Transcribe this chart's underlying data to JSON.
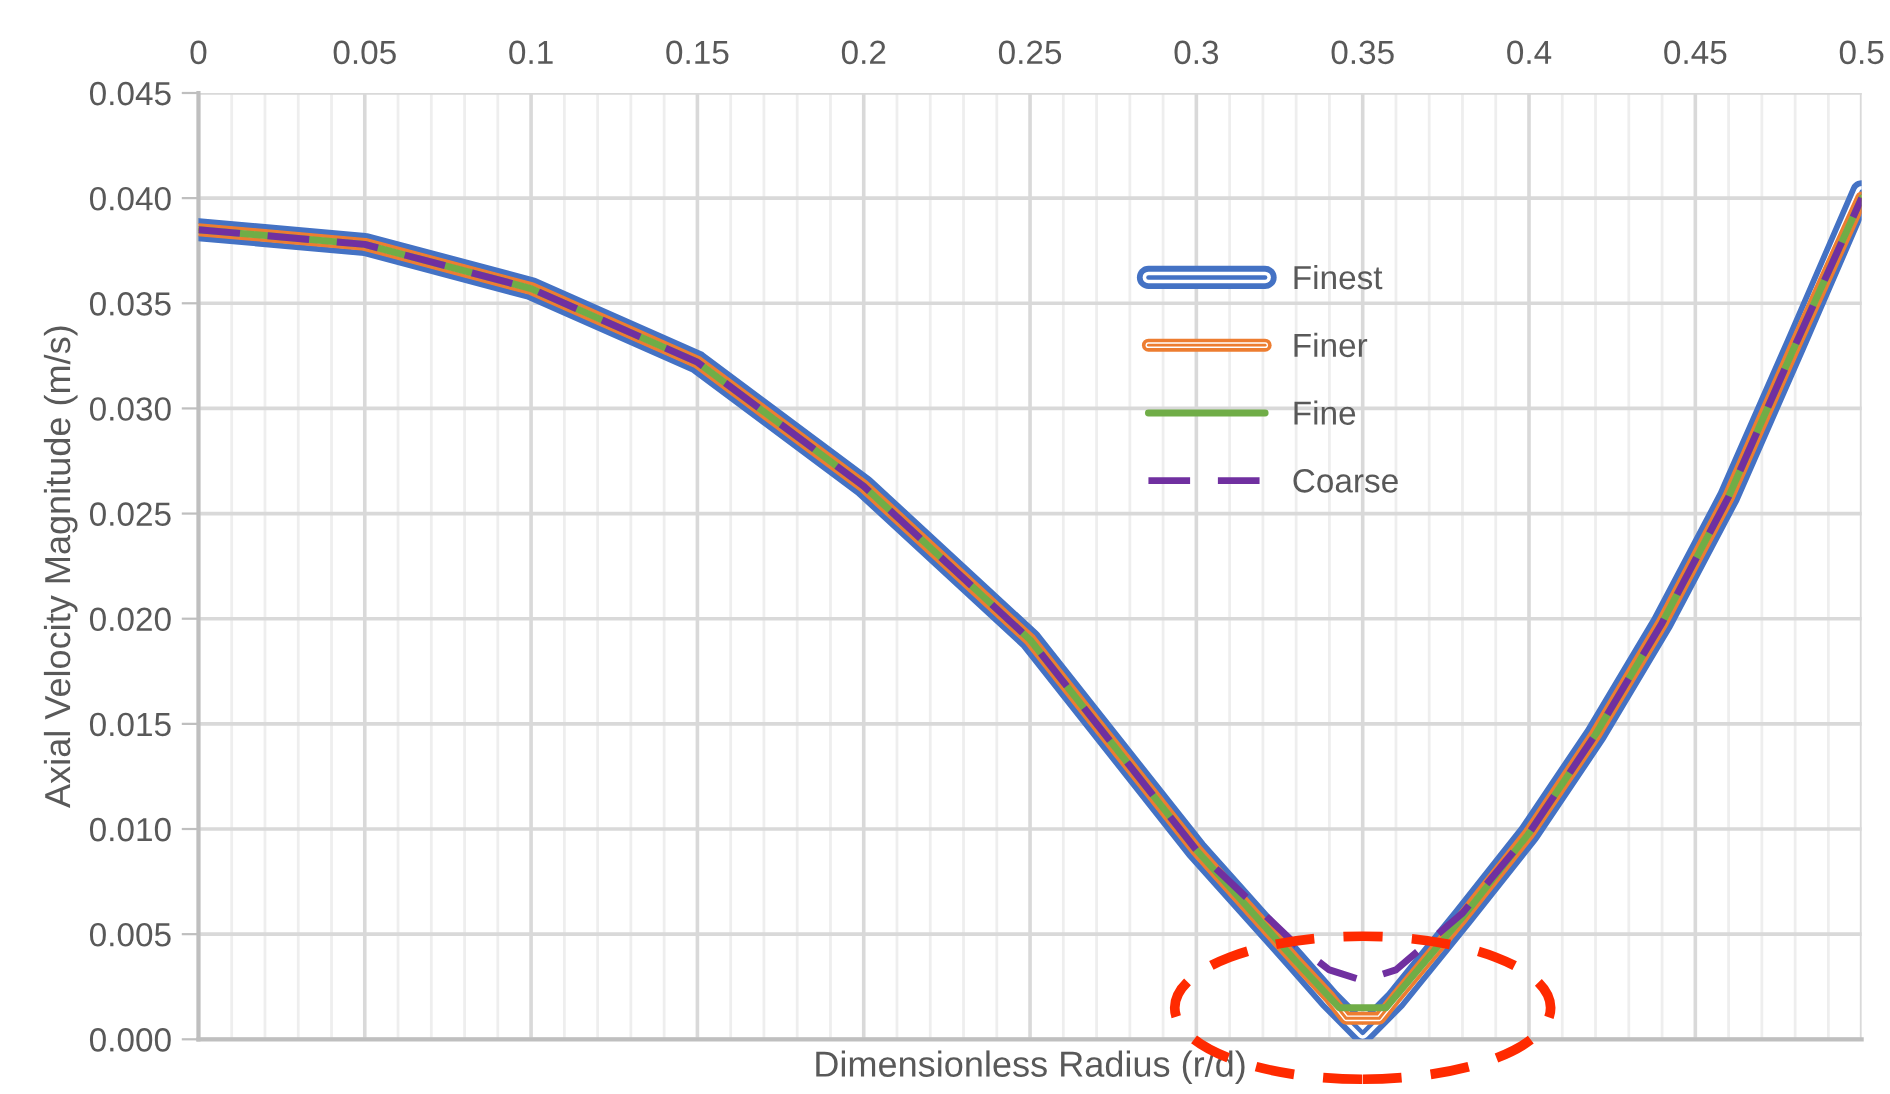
{
  "chart_data": {
    "type": "line",
    "xlabel": "Dimensionless Radius (r/d)",
    "ylabel": "Axial Velocity Magnitude (m/s)",
    "xlim": [
      0,
      0.5
    ],
    "ylim": [
      0,
      0.045
    ],
    "xticks": [
      0,
      {
        "value": 0.01,
        "label": null
      },
      {
        "value": 0.02,
        "label": null
      },
      {
        "value": 0.03,
        "label": null
      },
      {
        "value": 0.04,
        "label": null
      },
      0.05,
      {
        "value": 0.06,
        "label": null
      },
      {
        "value": 0.07,
        "label": null
      },
      {
        "value": 0.08,
        "label": null
      },
      {
        "value": 0.09,
        "label": null
      },
      0.1,
      {
        "value": 0.11,
        "label": null
      },
      {
        "value": 0.12,
        "label": null
      },
      {
        "value": 0.13,
        "label": null
      },
      {
        "value": 0.14,
        "label": null
      },
      0.15,
      {
        "value": 0.16,
        "label": null
      },
      {
        "value": 0.17,
        "label": null
      },
      {
        "value": 0.18,
        "label": null
      },
      {
        "value": 0.19,
        "label": null
      },
      0.2,
      {
        "value": 0.21,
        "label": null
      },
      {
        "value": 0.22,
        "label": null
      },
      {
        "value": 0.23,
        "label": null
      },
      {
        "value": 0.24,
        "label": null
      },
      0.25,
      {
        "value": 0.26,
        "label": null
      },
      {
        "value": 0.27,
        "label": null
      },
      {
        "value": 0.28,
        "label": null
      },
      {
        "value": 0.29,
        "label": null
      },
      0.3,
      {
        "value": 0.31,
        "label": null
      },
      {
        "value": 0.32,
        "label": null
      },
      {
        "value": 0.33,
        "label": null
      },
      {
        "value": 0.34,
        "label": null
      },
      0.35,
      {
        "value": 0.36,
        "label": null
      },
      {
        "value": 0.37,
        "label": null
      },
      {
        "value": 0.38,
        "label": null
      },
      {
        "value": 0.39,
        "label": null
      },
      0.4,
      {
        "value": 0.41,
        "label": null
      },
      {
        "value": 0.42,
        "label": null
      },
      {
        "value": 0.43,
        "label": null
      },
      {
        "value": 0.44,
        "label": null
      },
      0.45,
      {
        "value": 0.46,
        "label": null
      },
      {
        "value": 0.47,
        "label": null
      },
      {
        "value": 0.48,
        "label": null
      },
      {
        "value": 0.49,
        "label": null
      },
      0.5
    ],
    "yticks": [
      {
        "value": 0,
        "label": "0.000"
      },
      {
        "value": 0.005,
        "label": "0.005"
      },
      {
        "value": 0.01,
        "label": "0.010"
      },
      {
        "value": 0.015,
        "label": "0.015"
      },
      {
        "value": 0.02,
        "label": "0.020"
      },
      {
        "value": 0.025,
        "label": "0.025"
      },
      {
        "value": 0.03,
        "label": "0.030"
      },
      {
        "value": 0.035,
        "label": "0.035"
      },
      {
        "value": 0.04,
        "label": "0.040"
      },
      {
        "value": 0.045,
        "label": "0.045"
      }
    ],
    "grid": true,
    "legend": "top right",
    "marker": "none",
    "series": [
      {
        "name": "Finest",
        "color": "#4472c4",
        "line_style": "solid",
        "x": [
          0,
          0.05,
          0.1,
          0.15,
          0.2,
          0.25,
          0.3,
          0.33,
          0.34,
          0.35,
          0.36,
          0.38,
          0.4,
          0.42,
          0.44,
          0.46,
          0.48,
          0.5
        ],
        "values": [
          0.0385,
          0.0378,
          0.0357,
          0.0322,
          0.0263,
          0.019,
          0.009,
          0.0037,
          0.0019,
          0.0003,
          0.0019,
          0.0058,
          0.0098,
          0.0145,
          0.0198,
          0.0258,
          0.033,
          0.0403
        ]
      },
      {
        "name": "Finer",
        "color": "#ed7d31",
        "line_style": "solid",
        "x": [
          0,
          0.05,
          0.1,
          0.15,
          0.2,
          0.25,
          0.3,
          0.33,
          0.34,
          0.345,
          0.355,
          0.36,
          0.38,
          0.4,
          0.42,
          0.44,
          0.46,
          0.48,
          0.5
        ],
        "values": [
          0.0385,
          0.0378,
          0.0357,
          0.0322,
          0.0263,
          0.019,
          0.009,
          0.0037,
          0.002,
          0.001,
          0.001,
          0.002,
          0.0058,
          0.0098,
          0.0145,
          0.0198,
          0.0258,
          0.033,
          0.04
        ]
      },
      {
        "name": "Fine",
        "color": "#70ad47",
        "line_style": "solid",
        "x": [
          0,
          0.05,
          0.1,
          0.15,
          0.2,
          0.25,
          0.3,
          0.33,
          0.343,
          0.357,
          0.38,
          0.4,
          0.42,
          0.44,
          0.46,
          0.48,
          0.5
        ],
        "values": [
          0.0385,
          0.0378,
          0.0357,
          0.0322,
          0.0263,
          0.019,
          0.009,
          0.0037,
          0.0015,
          0.0015,
          0.0058,
          0.0098,
          0.0145,
          0.0198,
          0.0258,
          0.033,
          0.04
        ]
      },
      {
        "name": "Coarse",
        "color": "#7030a0",
        "line_style": "dashed",
        "x": [
          0,
          0.05,
          0.1,
          0.15,
          0.2,
          0.25,
          0.3,
          0.33,
          0.34,
          0.35,
          0.36,
          0.38,
          0.4,
          0.42,
          0.44,
          0.46,
          0.48,
          0.5
        ],
        "values": [
          0.0385,
          0.0378,
          0.0357,
          0.0322,
          0.0263,
          0.019,
          0.009,
          0.0045,
          0.0033,
          0.0028,
          0.0033,
          0.006,
          0.0098,
          0.0145,
          0.0198,
          0.0258,
          0.033,
          0.04
        ]
      }
    ]
  }
}
